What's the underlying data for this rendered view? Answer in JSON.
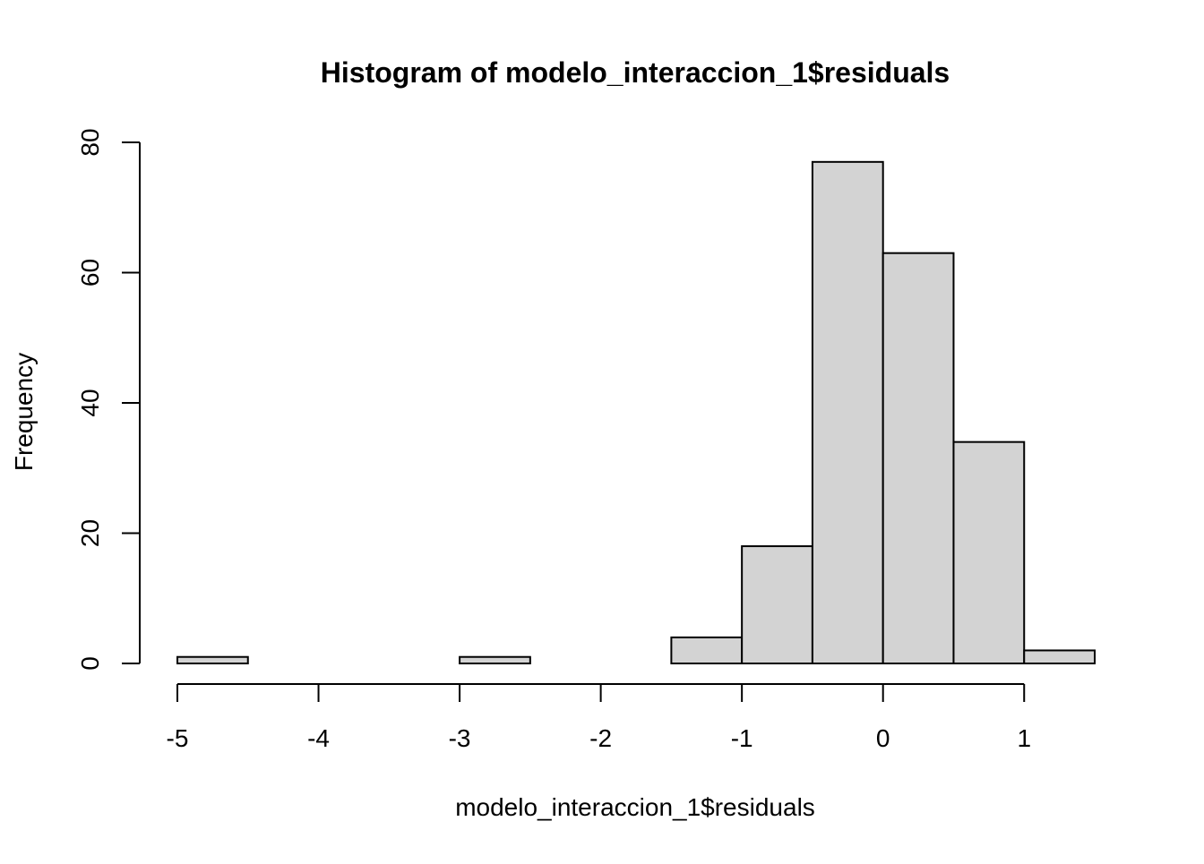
{
  "chart_data": {
    "type": "bar",
    "title": "Histogram of modelo_interaccion_1$residuals",
    "xlabel": "modelo_interaccion_1$residuals",
    "ylabel": "Frequency",
    "bins": [
      {
        "x0": -5.0,
        "x1": -4.5,
        "count": 1
      },
      {
        "x0": -4.5,
        "x1": -4.0,
        "count": 0
      },
      {
        "x0": -4.0,
        "x1": -3.5,
        "count": 0
      },
      {
        "x0": -3.5,
        "x1": -3.0,
        "count": 0
      },
      {
        "x0": -3.0,
        "x1": -2.5,
        "count": 1
      },
      {
        "x0": -2.5,
        "x1": -2.0,
        "count": 0
      },
      {
        "x0": -2.0,
        "x1": -1.5,
        "count": 0
      },
      {
        "x0": -1.5,
        "x1": -1.0,
        "count": 4
      },
      {
        "x0": -1.0,
        "x1": -0.5,
        "count": 18
      },
      {
        "x0": -0.5,
        "x1": 0.0,
        "count": 77
      },
      {
        "x0": 0.0,
        "x1": 0.5,
        "count": 63
      },
      {
        "x0": 0.5,
        "x1": 1.0,
        "count": 34
      },
      {
        "x0": 1.0,
        "x1": 1.5,
        "count": 2
      }
    ],
    "xlim": [
      -5,
      1.5
    ],
    "ylim": [
      0,
      80
    ],
    "x_ticks": [
      -5,
      -4,
      -3,
      -2,
      -1,
      0,
      1
    ],
    "y_ticks": [
      0,
      20,
      40,
      60,
      80
    ],
    "grid": false,
    "colors": {
      "bar_fill": "#d3d3d3",
      "bar_stroke": "#000000",
      "axis": "#000000"
    }
  }
}
